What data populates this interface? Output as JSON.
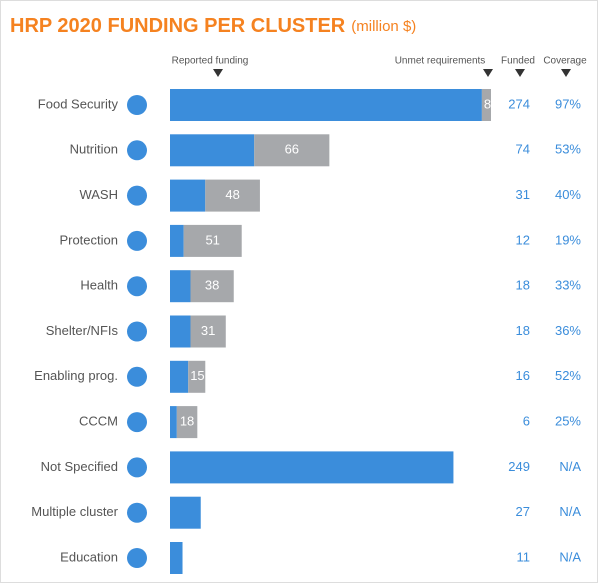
{
  "chart_data": {
    "type": "stacked-bar-horizontal",
    "title": "HRP 2020 FUNDING PER CLUSTER",
    "subtitle": "(million $)",
    "column_headers": [
      "Reported funding",
      "Unmet requirements",
      "Funded",
      "Coverage"
    ],
    "categories": [
      "Food Security",
      "Nutrition",
      "WASH",
      "Protection",
      "Health",
      "Shelter/NFIs",
      "Enabling prog.",
      "CCCM",
      "Not Specified",
      "Multiple cluster",
      "Education"
    ],
    "series": [
      {
        "name": "Reported funding",
        "color": "#3b8ddb",
        "values": [
          274,
          74,
          31,
          12,
          18,
          18,
          16,
          6,
          249,
          27,
          11
        ]
      },
      {
        "name": "Unmet requirements",
        "color": "#a6a8ab",
        "values": [
          8,
          66,
          48,
          51,
          38,
          31,
          15,
          18,
          null,
          null,
          null
        ]
      }
    ],
    "coverage": {
      "values": [
        97,
        53,
        40,
        19,
        33,
        36,
        52,
        25,
        null,
        null,
        null
      ],
      "value_labels": [
        "97%",
        "53%",
        "40%",
        "19%",
        "33%",
        "36%",
        "52%",
        "25%",
        "N/A",
        "N/A",
        "N/A"
      ]
    },
    "xlim": [
      0,
      282
    ]
  }
}
